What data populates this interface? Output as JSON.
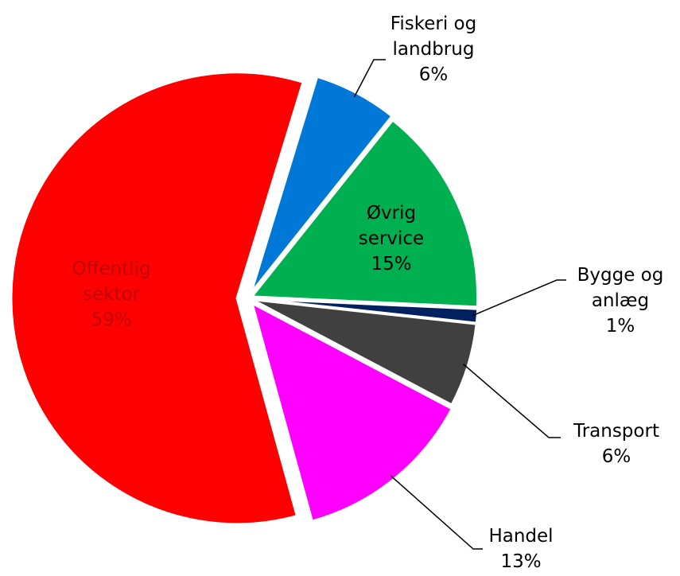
{
  "chart_data": {
    "type": "pie",
    "categories": [
      "Fiskeri og landbrug",
      "Øvrig service",
      "Bygge og anlæg",
      "Transport",
      "Handel",
      "Offentlig sektor"
    ],
    "values": [
      6,
      15,
      1,
      6,
      13,
      59
    ],
    "value_labels": [
      "6%",
      "15%",
      "1%",
      "6%",
      "13%",
      "59%"
    ],
    "colors": [
      "#0078d7",
      "#00b050",
      "#002060",
      "#404040",
      "#ff00ff",
      "#ff0000"
    ]
  }
}
